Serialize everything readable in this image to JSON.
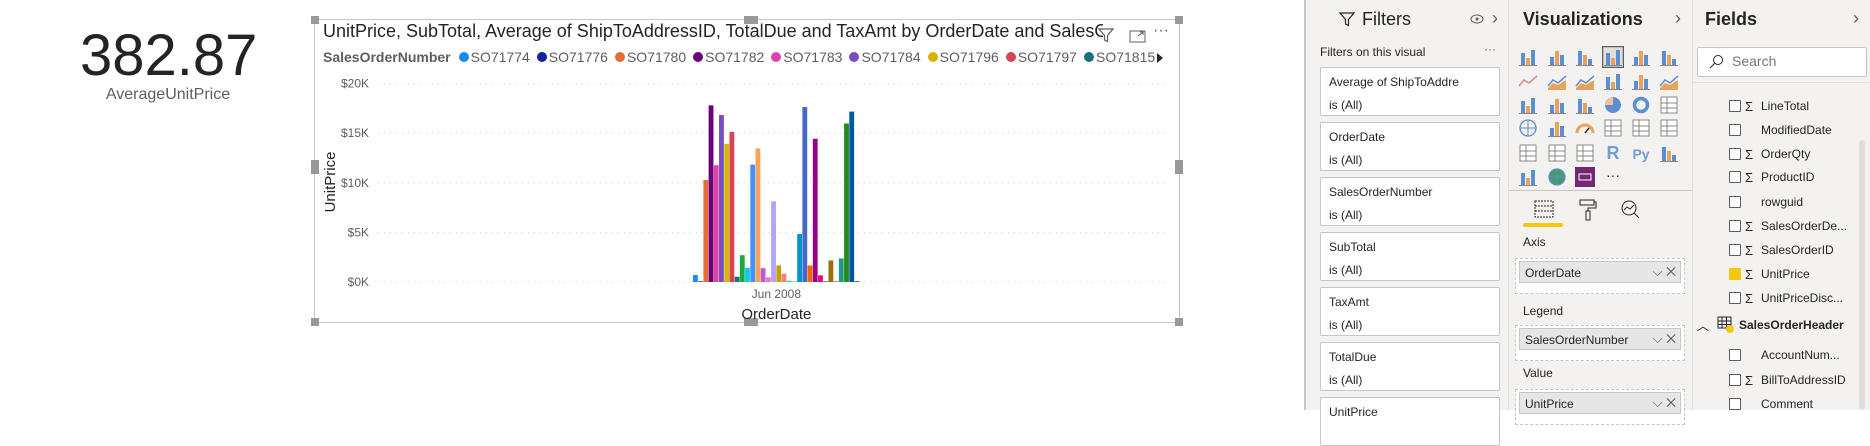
{
  "kpi": {
    "value": "382.87",
    "label": "AverageUnitPrice"
  },
  "visual": {
    "title": "UnitPrice, SubTotal, Average of ShipToAddressID, TotalDue and TaxAmt by OrderDate and SalesOrderN",
    "more": "···",
    "legend_title": "SalesOrderNumber"
  },
  "chart_data": {
    "type": "bar",
    "title": "UnitPrice, SubTotal, Average of ShipToAddressID, TotalDue and TaxAmt by OrderDate and SalesOrderNumber",
    "xlabel": "OrderDate",
    "ylabel": "UnitPrice",
    "categories": [
      "Jun 2008"
    ],
    "ylim": [
      0,
      20000
    ],
    "yticks": [
      "$0K",
      "$5K",
      "$10K",
      "$15K",
      "$20K"
    ],
    "ytick_values": [
      0,
      5000,
      10000,
      15000,
      20000
    ],
    "legend_position": "top",
    "grid": true,
    "legend": [
      {
        "name": "SO71774",
        "color": "#118DFF"
      },
      {
        "name": "SO71776",
        "color": "#12239E"
      },
      {
        "name": "SO71780",
        "color": "#E66C37"
      },
      {
        "name": "SO71782",
        "color": "#6B007B"
      },
      {
        "name": "SO71783",
        "color": "#E044A7"
      },
      {
        "name": "SO71784",
        "color": "#744EC2"
      },
      {
        "name": "SO71796",
        "color": "#D9B300"
      },
      {
        "name": "SO71797",
        "color": "#D64550"
      },
      {
        "name": "SO71815",
        "color": "#197278"
      }
    ],
    "series_values": [
      700,
      70,
      10270,
      17800,
      11770,
      16830,
      13930,
      15130,
      530,
      2700,
      1430,
      11830,
      13470,
      1400,
      470,
      8130,
      1670,
      830,
      130,
      70,
      4830,
      17630,
      1670,
      14430,
      670,
      70,
      2170,
      70,
      2370,
      15970,
      17170,
      70
    ],
    "series_colors": [
      "#118DFF",
      "#12239E",
      "#E66C37",
      "#6B007B",
      "#E044A7",
      "#744EC2",
      "#D9B300",
      "#D64550",
      "#197278",
      "#1AAB40",
      "#15C6F4",
      "#4092FF",
      "#FFA058",
      "#BE5DC9",
      "#F472D0",
      "#B5A1FF",
      "#C4A200",
      "#FF8080",
      "#00DBBC",
      "#5BD667",
      "#0091D5",
      "#4668C5",
      "#FF6300",
      "#99008A",
      "#EC008C",
      "#533285",
      "#99700A",
      "#FF4141",
      "#1F9A85",
      "#25891C",
      "#0057A2",
      "#002050"
    ]
  },
  "filters": {
    "title": "Filters",
    "subtitle": "Filters on this visual",
    "more": "···",
    "cards": [
      {
        "name": "Average of ShipToAddre",
        "value": "is (All)"
      },
      {
        "name": "OrderDate",
        "value": "is (All)"
      },
      {
        "name": "SalesOrderNumber",
        "value": "is (All)"
      },
      {
        "name": "SubTotal",
        "value": "is (All)"
      },
      {
        "name": "TaxAmt",
        "value": "is (All)"
      },
      {
        "name": "TotalDue",
        "value": "is (All)"
      },
      {
        "name": "UnitPrice",
        "value": ""
      }
    ]
  },
  "viz": {
    "title": "Visualizations",
    "icons": [
      "stacked-bar",
      "stacked-column",
      "clustered-bar",
      "clustered-column",
      "100-stacked-bar",
      "100-stacked-column",
      "line",
      "area",
      "stacked-area",
      "line-stacked-column",
      "line-clustered-column",
      "ribbon",
      "waterfall",
      "funnel",
      "scatter",
      "pie",
      "donut",
      "treemap",
      "map",
      "filled-map",
      "gauge",
      "card",
      "multi-row-card",
      "kpi",
      "slicer",
      "table",
      "matrix",
      "r-visual",
      "python-visual",
      "key-influencers",
      "smart-narrative",
      "arcgis-map",
      "custom-visual",
      "more"
    ],
    "r_label": "R",
    "py_label": "Py",
    "more_label": "···",
    "wells": [
      {
        "label": "Axis",
        "field": "OrderDate"
      },
      {
        "label": "Legend",
        "field": "SalesOrderNumber"
      },
      {
        "label": "Value",
        "field": "UnitPrice"
      }
    ],
    "accent": "#F2C811"
  },
  "fields": {
    "title": "Fields",
    "search_placeholder": "Search",
    "items": [
      {
        "label": "LineTotal",
        "sigma": true,
        "checked": false
      },
      {
        "label": "ModifiedDate",
        "sigma": false,
        "checked": false
      },
      {
        "label": "OrderQty",
        "sigma": true,
        "checked": false
      },
      {
        "label": "ProductID",
        "sigma": true,
        "checked": false
      },
      {
        "label": "rowguid",
        "sigma": false,
        "checked": false
      },
      {
        "label": "SalesOrderDe...",
        "sigma": true,
        "checked": false
      },
      {
        "label": "SalesOrderID",
        "sigma": true,
        "checked": false
      },
      {
        "label": "UnitPrice",
        "sigma": true,
        "checked": true
      },
      {
        "label": "UnitPriceDisc...",
        "sigma": true,
        "checked": false
      }
    ],
    "table": "SalesOrderHeader",
    "table_items": [
      {
        "label": "AccountNum...",
        "sigma": false,
        "checked": false
      },
      {
        "label": "BillToAddressID",
        "sigma": true,
        "checked": false
      },
      {
        "label": "Comment",
        "sigma": false,
        "checked": false
      }
    ]
  }
}
